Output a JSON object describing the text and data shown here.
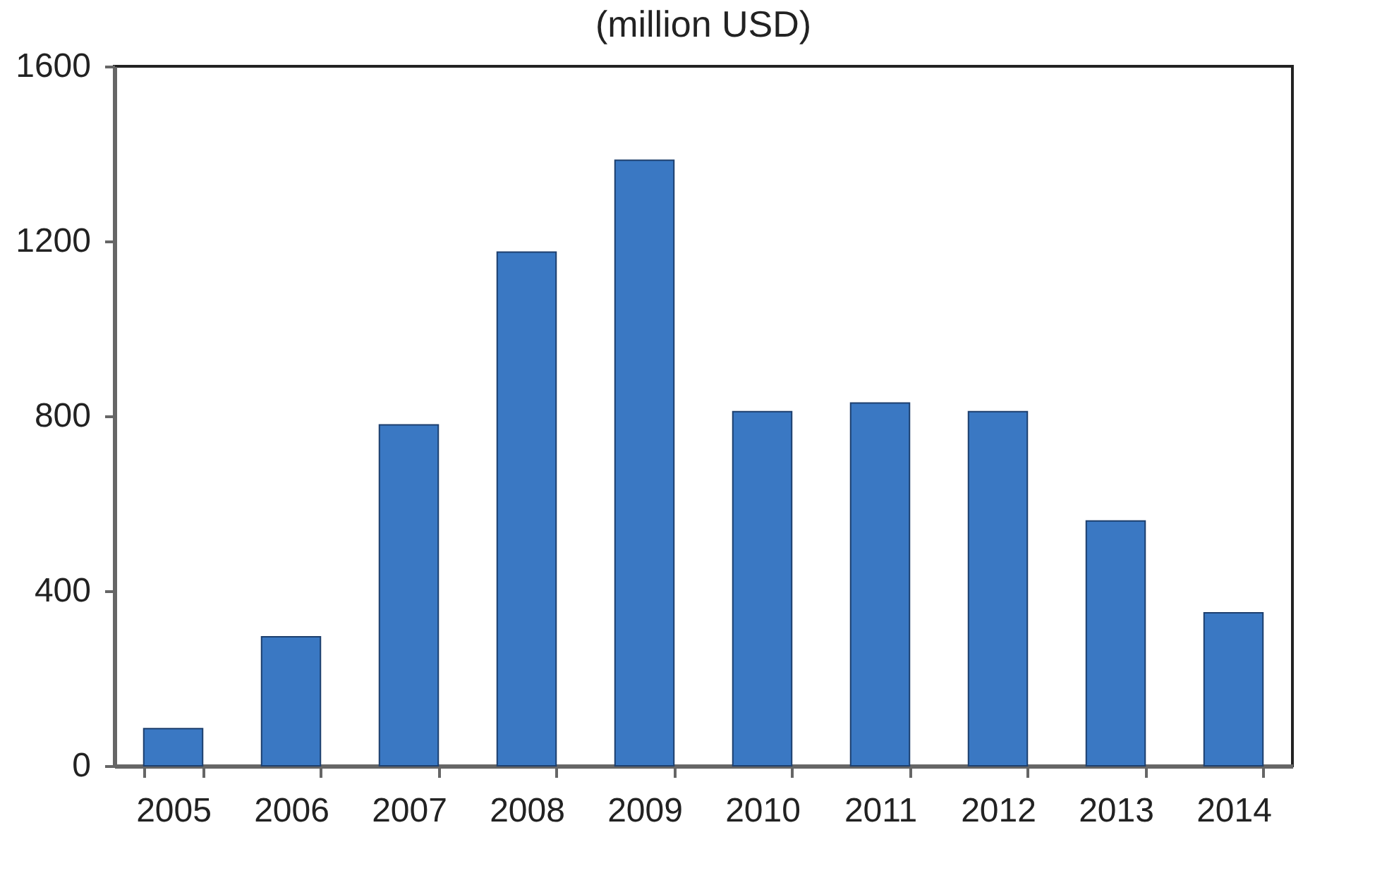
{
  "chart_data": {
    "type": "bar",
    "title": "(million USD)",
    "categories": [
      "2005",
      "2006",
      "2007",
      "2008",
      "2009",
      "2010",
      "2011",
      "2012",
      "2013",
      "2014"
    ],
    "values": [
      85,
      295,
      780,
      1175,
      1385,
      810,
      830,
      810,
      560,
      350
    ],
    "color": "#3a78c3",
    "ylim": [
      0,
      1600
    ],
    "yticks": [
      0,
      400,
      800,
      1200,
      1600
    ],
    "grid": false
  }
}
